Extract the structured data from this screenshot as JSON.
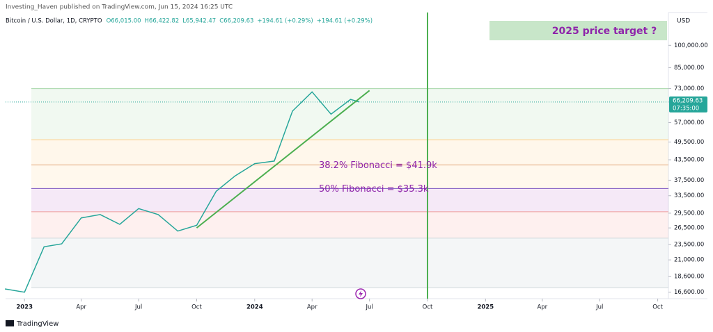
{
  "header": {
    "publisher": "Investing_Haven published on TradingView.com, Jun 15, 2024 16:25 UTC",
    "footer": "TradingView"
  },
  "chart_data": {
    "type": "line",
    "symbol": "Bitcoin / U.S. Dollar, 1D, CRYPTO",
    "legend_values": [
      "O66,015.00",
      "H66,422.82",
      "L65,942.47",
      "C66,209.63",
      "+194.61 (+0.29%)",
      "+194.61 (+0.29%)"
    ],
    "currency": "USD",
    "x": [
      "2022-12",
      "2023-01",
      "2023-02",
      "2023-03",
      "2023-04",
      "2023-05",
      "2023-06",
      "2023-07",
      "2023-08",
      "2023-09",
      "2023-10",
      "2023-11",
      "2023-12",
      "2024-01",
      "2024-02",
      "2024-03",
      "2024-04",
      "2024-05",
      "2024-06",
      "2024-06-15"
    ],
    "values": [
      17000,
      16600,
      23100,
      23600,
      28500,
      29200,
      27200,
      30500,
      29200,
      25900,
      27000,
      34600,
      38700,
      42300,
      43100,
      62000,
      71300,
      60600,
      67500,
      66209.63
    ],
    "color": "#26a69a",
    "log_scale": true,
    "xlim": [
      "2022-12-02",
      "2025-10-18"
    ],
    "ylim": [
      16000,
      127000
    ],
    "xticks": [
      {
        "value": "2023-01",
        "label": "2023"
      },
      {
        "value": "2023-04",
        "label": "Apr"
      },
      {
        "value": "2023-07",
        "label": "Jul"
      },
      {
        "value": "2023-10",
        "label": "Oct"
      },
      {
        "value": "2024-01",
        "label": "2024"
      },
      {
        "value": "2024-04",
        "label": "Apr"
      },
      {
        "value": "2024-07",
        "label": "Jul"
      },
      {
        "value": "2024-10",
        "label": "Oct"
      },
      {
        "value": "2025-01",
        "label": "2025"
      },
      {
        "value": "2025-04",
        "label": "Apr"
      },
      {
        "value": "2025-07",
        "label": "Jul"
      },
      {
        "value": "2025-10",
        "label": "Oct"
      }
    ],
    "yticks": [
      {
        "value": 100000,
        "label": "100,000.00"
      },
      {
        "value": 85000,
        "label": "85,000.00"
      },
      {
        "value": 73000,
        "label": "73,000.00"
      },
      {
        "value": 57000,
        "label": "57,000.00"
      },
      {
        "value": 49500,
        "label": "49,500.00"
      },
      {
        "value": 43500,
        "label": "43,500.00"
      },
      {
        "value": 37500,
        "label": "37,500.00"
      },
      {
        "value": 33500,
        "label": "33,500.00"
      },
      {
        "value": 29500,
        "label": "29,500.00"
      },
      {
        "value": 26500,
        "label": "26,500.00"
      },
      {
        "value": 23500,
        "label": "23,500.00"
      },
      {
        "value": 21000,
        "label": "21,000.00"
      },
      {
        "value": 18600,
        "label": "18,600.00"
      },
      {
        "value": 16600,
        "label": "16,600.00"
      }
    ],
    "last_price": {
      "value": 66209.63,
      "label": "66,209.63"
    },
    "countdown": "07:35:00",
    "fib_levels": [
      73000,
      50300,
      41900,
      35300,
      29800,
      24600,
      17150
    ],
    "fib_fills": [
      "#4caf5014",
      "#ff980014",
      "#ff980012",
      "#9c27b01a",
      "#f4433614",
      "#78909c14"
    ],
    "fib_line_colors": [
      "#a5d6a7",
      "#ffcc80",
      "#e0a070",
      "#7e57c2",
      "#ef9a9a",
      "#cfd8dc",
      "#cfd8dc"
    ],
    "trendline": {
      "x": [
        "2023-10",
        "2024-07"
      ],
      "values": [
        26500,
        72000
      ],
      "color": "#4caf50"
    },
    "vertical_line": {
      "x": "2024-10",
      "color": "#4caf50"
    },
    "annotations": [
      "2025 price target ?",
      "38.2% Fibonacci = $41.9k",
      "50% Fibonacci = $35.3k"
    ],
    "annotation_color": "#8e24aa"
  }
}
